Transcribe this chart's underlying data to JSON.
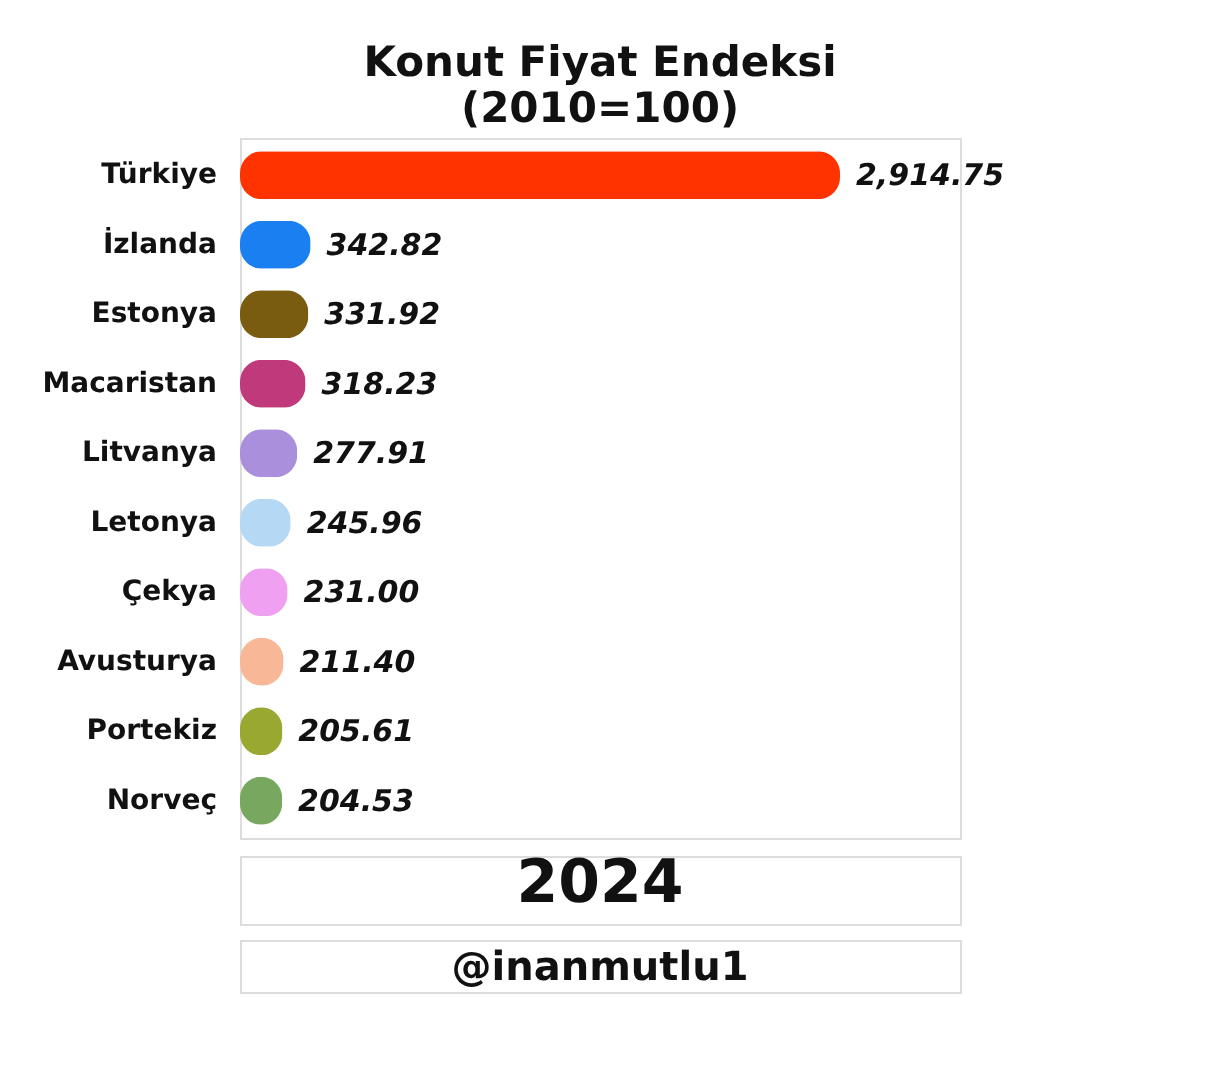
{
  "chart_data": {
    "type": "bar",
    "orientation": "horizontal",
    "title": "Konut Fiyat Endeksi\n(2010=100)",
    "categories": [
      "Türkiye",
      "İzlanda",
      "Estonya",
      "Macaristan",
      "Litvanya",
      "Letonya",
      "Çekya",
      "Avusturya",
      "Portekiz",
      "Norveç"
    ],
    "values": [
      2914.75,
      342.82,
      331.92,
      318.23,
      277.91,
      245.96,
      231.0,
      211.4,
      205.61,
      204.53
    ],
    "colors": [
      "#ff3300",
      "#1a7ff0",
      "#7a5c10",
      "#c0397a",
      "#a98fdc",
      "#b5d8f5",
      "#f0a0f0",
      "#f8b898",
      "#98a830",
      "#78a860"
    ],
    "value_labels": [
      "2,914.75",
      "342.82",
      "331.92",
      "318.23",
      "277.91",
      "245.96",
      "231.00",
      "211.40",
      "205.61",
      "204.53"
    ],
    "tick_labels": "y",
    "grid": false,
    "legend": false,
    "annotations": [
      "2024",
      "@inanmutlu1"
    ]
  }
}
